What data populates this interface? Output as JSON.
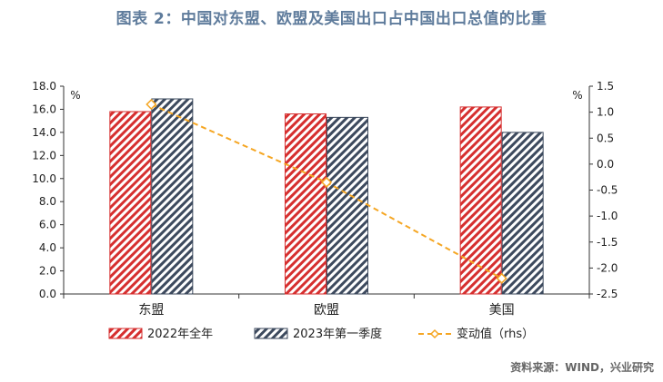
{
  "header": {
    "title": "图表 2：中国对东盟、欧盟及美国出口占中国出口总值的比重",
    "source": "资料来源：WIND，兴业研究"
  },
  "chart_data": {
    "type": "bar",
    "categories": [
      "东盟",
      "欧盟",
      "美国"
    ],
    "series": [
      {
        "name": "2022年全年",
        "axis": "left",
        "values": [
          15.8,
          15.6,
          16.2
        ],
        "color": "#d62f2f",
        "pattern": "diagonal-hatch"
      },
      {
        "name": "2023年第一季度",
        "axis": "left",
        "values": [
          16.9,
          15.3,
          14.0
        ],
        "color": "#3d4a5e",
        "pattern": "diagonal-hatch"
      },
      {
        "name": "变动值（rhs）",
        "axis": "right",
        "type": "line",
        "values": [
          1.15,
          -0.35,
          -2.2
        ],
        "color": "#f5a623",
        "style": "dashed",
        "marker": "diamond"
      }
    ],
    "left_axis": {
      "unit": "%",
      "ylim": [
        0,
        18
      ],
      "ticks": [
        "0.0",
        "2.0",
        "4.0",
        "6.0",
        "8.0",
        "10.0",
        "12.0",
        "14.0",
        "16.0",
        "18.0"
      ]
    },
    "right_axis": {
      "unit": "%",
      "ylim": [
        -2.5,
        1.5
      ],
      "ticks": [
        "-2.5",
        "-2.0",
        "-1.5",
        "-1.0",
        "-0.5",
        "0.0",
        "0.5",
        "1.0",
        "1.5"
      ]
    },
    "grid": false,
    "legend_position": "bottom"
  }
}
